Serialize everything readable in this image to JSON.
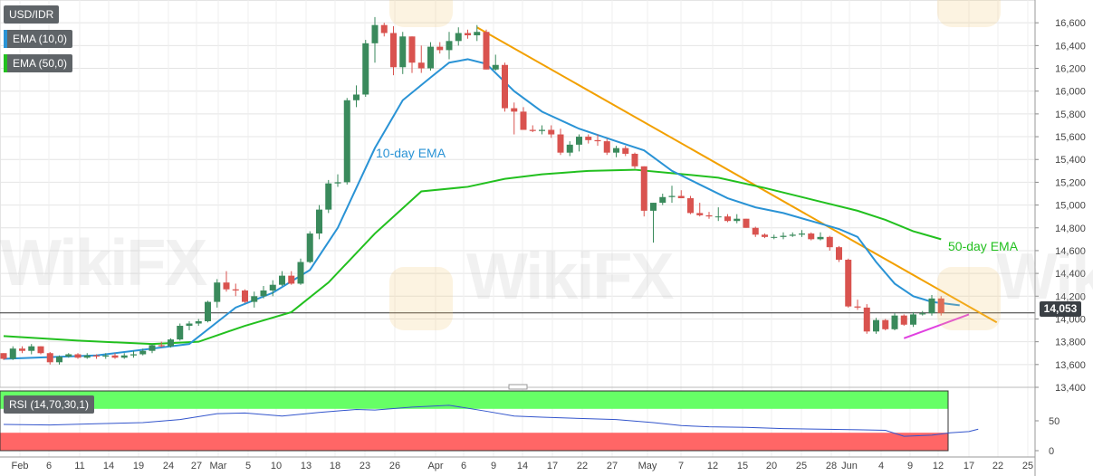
{
  "legend": {
    "symbol": "USD/IDR",
    "ema10": "EMA (10,0)",
    "ema50": "EMA (50,0)",
    "rsi": "RSI (14,70,30,1)"
  },
  "colors": {
    "up": "#3a8a5c",
    "down": "#d9534f",
    "ema10": "#2a93d5",
    "ema50": "#22c01f",
    "trend_resistance": "#f2a000",
    "trend_support": "#e040e0",
    "rsi_line": "#3355cc",
    "rsi_overbought_fill": "#66ff66",
    "rsi_oversold_fill": "#ff6666"
  },
  "annotations": {
    "ema10_label": "10-day EMA",
    "ema50_label": "50-day EMA"
  },
  "last_price": "14,053",
  "watermark": "WikiFX",
  "chart_data": {
    "type": "candlestick",
    "y_ticks": [
      "13,400",
      "13,600",
      "13,800",
      "14,000",
      "14,200",
      "14,400",
      "14,600",
      "14,800",
      "15,000",
      "15,200",
      "15,400",
      "15,600",
      "15,800",
      "16,000",
      "16,200",
      "16,400",
      "16,600"
    ],
    "y_range": [
      13400,
      16800
    ],
    "x_labels": [
      "Feb",
      "6",
      "11",
      "14",
      "19",
      "24",
      "27",
      "Mar",
      "5",
      "10",
      "13",
      "18",
      "23",
      "26",
      "Apr",
      "6",
      "9",
      "14",
      "17",
      "22",
      "27",
      "May",
      "7",
      "12",
      "15",
      "20",
      "25",
      "28",
      "Jun",
      "4",
      "9",
      "12",
      "17",
      "22",
      "25"
    ],
    "rsi_ticks": [
      "0",
      "50"
    ],
    "rsi_levels": {
      "overbought": 70,
      "oversold": 30
    },
    "candles": [
      [
        13700,
        13700,
        13640,
        13650
      ],
      [
        13650,
        13760,
        13640,
        13740
      ],
      [
        13740,
        13760,
        13700,
        13720
      ],
      [
        13720,
        13780,
        13690,
        13760
      ],
      [
        13760,
        13760,
        13690,
        13700
      ],
      [
        13700,
        13710,
        13600,
        13620
      ],
      [
        13620,
        13680,
        13600,
        13670
      ],
      [
        13670,
        13700,
        13660,
        13690
      ],
      [
        13690,
        13700,
        13650,
        13660
      ],
      [
        13660,
        13700,
        13650,
        13680
      ],
      [
        13680,
        13690,
        13650,
        13670
      ],
      [
        13670,
        13700,
        13650,
        13680
      ],
      [
        13680,
        13700,
        13650,
        13660
      ],
      [
        13660,
        13700,
        13650,
        13680
      ],
      [
        13680,
        13720,
        13660,
        13690
      ],
      [
        13690,
        13740,
        13680,
        13720
      ],
      [
        13720,
        13780,
        13700,
        13770
      ],
      [
        13770,
        13800,
        13750,
        13760
      ],
      [
        13760,
        13830,
        13750,
        13820
      ],
      [
        13820,
        13960,
        13810,
        13940
      ],
      [
        13940,
        13980,
        13900,
        13960
      ],
      [
        13960,
        14000,
        13940,
        13980
      ],
      [
        13980,
        14160,
        13970,
        14150
      ],
      [
        14150,
        14350,
        14100,
        14320
      ],
      [
        14320,
        14420,
        14240,
        14260
      ],
      [
        14260,
        14310,
        14200,
        14250
      ],
      [
        14250,
        14260,
        14140,
        14150
      ],
      [
        14150,
        14240,
        14100,
        14200
      ],
      [
        14200,
        14290,
        14180,
        14250
      ],
      [
        14250,
        14340,
        14200,
        14300
      ],
      [
        14300,
        14420,
        14290,
        14380
      ],
      [
        14380,
        14420,
        14300,
        14310
      ],
      [
        14310,
        14530,
        14300,
        14500
      ],
      [
        14500,
        14770,
        14490,
        14750
      ],
      [
        14750,
        15000,
        14700,
        14960
      ],
      [
        14960,
        15220,
        14930,
        15190
      ],
      [
        15190,
        15270,
        15160,
        15200
      ],
      [
        15200,
        15940,
        15180,
        15920
      ],
      [
        15920,
        16050,
        15860,
        15970
      ],
      [
        15970,
        16450,
        15950,
        16420
      ],
      [
        16420,
        16650,
        16250,
        16580
      ],
      [
        16580,
        16600,
        16480,
        16510
      ],
      [
        16510,
        16570,
        16140,
        16210
      ],
      [
        16210,
        16520,
        16150,
        16480
      ],
      [
        16480,
        16480,
        16160,
        16250
      ],
      [
        16250,
        16400,
        16160,
        16200
      ],
      [
        16200,
        16430,
        16180,
        16390
      ],
      [
        16390,
        16430,
        16330,
        16360
      ],
      [
        16360,
        16520,
        16280,
        16440
      ],
      [
        16440,
        16560,
        16400,
        16510
      ],
      [
        16510,
        16540,
        16460,
        16490
      ],
      [
        16490,
        16580,
        16440,
        16520
      ],
      [
        16520,
        16540,
        16190,
        16190
      ],
      [
        16190,
        16320,
        16180,
        16230
      ],
      [
        16230,
        16250,
        15820,
        15850
      ],
      [
        15850,
        15900,
        15620,
        15820
      ],
      [
        15820,
        15860,
        15660,
        15660
      ],
      [
        15660,
        15700,
        15640,
        15650
      ],
      [
        15650,
        15700,
        15620,
        15660
      ],
      [
        15660,
        15700,
        15590,
        15620
      ],
      [
        15620,
        15670,
        15440,
        15460
      ],
      [
        15460,
        15560,
        15430,
        15530
      ],
      [
        15530,
        15620,
        15470,
        15600
      ],
      [
        15600,
        15620,
        15540,
        15570
      ],
      [
        15570,
        15620,
        15520,
        15560
      ],
      [
        15560,
        15580,
        15440,
        15460
      ],
      [
        15460,
        15520,
        15420,
        15500
      ],
      [
        15500,
        15520,
        15430,
        15450
      ],
      [
        15450,
        15460,
        15320,
        15340
      ],
      [
        15340,
        15340,
        14900,
        14950
      ],
      [
        14950,
        15020,
        14670,
        15020
      ],
      [
        15020,
        15100,
        15000,
        15070
      ],
      [
        15070,
        15170,
        15020,
        15080
      ],
      [
        15080,
        15130,
        15060,
        15060
      ],
      [
        15060,
        15080,
        14920,
        14930
      ],
      [
        14930,
        15020,
        14900,
        14910
      ],
      [
        14910,
        14940,
        14880,
        14900
      ],
      [
        14900,
        14980,
        14860,
        14900
      ],
      [
        14900,
        14920,
        14850,
        14860
      ],
      [
        14860,
        14920,
        14840,
        14880
      ],
      [
        14880,
        14880,
        14800,
        14800
      ],
      [
        14800,
        14810,
        14720,
        14740
      ],
      [
        14740,
        14750,
        14710,
        14720
      ],
      [
        14720,
        14740,
        14700,
        14720
      ],
      [
        14720,
        14760,
        14700,
        14730
      ],
      [
        14730,
        14760,
        14720,
        14740
      ],
      [
        14740,
        14780,
        14720,
        14750
      ],
      [
        14750,
        14760,
        14690,
        14700
      ],
      [
        14700,
        14760,
        14690,
        14720
      ],
      [
        14720,
        14730,
        14600,
        14630
      ],
      [
        14630,
        14640,
        14500,
        14520
      ],
      [
        14520,
        14530,
        14100,
        14110
      ],
      [
        14110,
        14170,
        14080,
        14100
      ],
      [
        14100,
        14130,
        13870,
        13890
      ],
      [
        13890,
        14010,
        13870,
        13990
      ],
      [
        13990,
        14000,
        13900,
        13910
      ],
      [
        13910,
        14050,
        13900,
        14030
      ],
      [
        14030,
        14040,
        13940,
        13950
      ],
      [
        13950,
        14060,
        13930,
        14040
      ],
      [
        14040,
        14070,
        14030,
        14050
      ],
      [
        14050,
        14210,
        14030,
        14180
      ],
      [
        14180,
        14200,
        14030,
        14053
      ]
    ],
    "ema10": [
      [
        0,
        13650
      ],
      [
        10,
        13680
      ],
      [
        20,
        13780
      ],
      [
        25,
        14100
      ],
      [
        29,
        14230
      ],
      [
        33,
        14430
      ],
      [
        36,
        14800
      ],
      [
        38,
        15150
      ],
      [
        40,
        15500
      ],
      [
        43,
        15920
      ],
      [
        46,
        16120
      ],
      [
        48,
        16250
      ],
      [
        50,
        16280
      ],
      [
        52,
        16240
      ],
      [
        55,
        16000
      ],
      [
        58,
        15820
      ],
      [
        62,
        15670
      ],
      [
        66,
        15560
      ],
      [
        69,
        15480
      ],
      [
        72,
        15300
      ],
      [
        75,
        15180
      ],
      [
        78,
        15060
      ],
      [
        81,
        14980
      ],
      [
        84,
        14930
      ],
      [
        87,
        14860
      ],
      [
        90,
        14790
      ],
      [
        92,
        14720
      ],
      [
        94,
        14500
      ],
      [
        96,
        14310
      ],
      [
        98,
        14200
      ],
      [
        100,
        14150
      ],
      [
        102,
        14130
      ],
      [
        103,
        14120
      ]
    ],
    "ema50": [
      [
        0,
        13850
      ],
      [
        8,
        13810
      ],
      [
        16,
        13780
      ],
      [
        21,
        13800
      ],
      [
        26,
        13940
      ],
      [
        31,
        14060
      ],
      [
        35,
        14320
      ],
      [
        40,
        14750
      ],
      [
        45,
        15120
      ],
      [
        50,
        15160
      ],
      [
        54,
        15230
      ],
      [
        58,
        15270
      ],
      [
        63,
        15300
      ],
      [
        68,
        15310
      ],
      [
        72,
        15280
      ],
      [
        77,
        15240
      ],
      [
        82,
        15150
      ],
      [
        87,
        15050
      ],
      [
        92,
        14950
      ],
      [
        95,
        14870
      ],
      [
        98,
        14770
      ],
      [
        101,
        14700
      ]
    ],
    "trend_resistance": [
      [
        51,
        16560
      ],
      [
        107,
        13970
      ]
    ],
    "trend_support": [
      [
        97,
        13830
      ],
      [
        104,
        14040
      ]
    ],
    "rsi": [
      [
        0,
        44
      ],
      [
        5,
        43
      ],
      [
        10,
        45
      ],
      [
        15,
        47
      ],
      [
        19,
        52
      ],
      [
        23,
        62
      ],
      [
        26,
        63
      ],
      [
        30,
        58
      ],
      [
        34,
        64
      ],
      [
        38,
        69
      ],
      [
        40,
        68
      ],
      [
        44,
        73
      ],
      [
        48,
        76
      ],
      [
        52,
        66
      ],
      [
        55,
        58
      ],
      [
        58,
        56
      ],
      [
        62,
        54
      ],
      [
        66,
        52
      ],
      [
        70,
        47
      ],
      [
        73,
        42
      ],
      [
        76,
        40
      ],
      [
        80,
        39
      ],
      [
        84,
        37
      ],
      [
        88,
        36
      ],
      [
        92,
        35
      ],
      [
        95,
        34
      ],
      [
        97,
        24
      ],
      [
        100,
        26
      ],
      [
        102,
        30
      ],
      [
        104,
        32
      ],
      [
        105,
        36
      ]
    ]
  }
}
